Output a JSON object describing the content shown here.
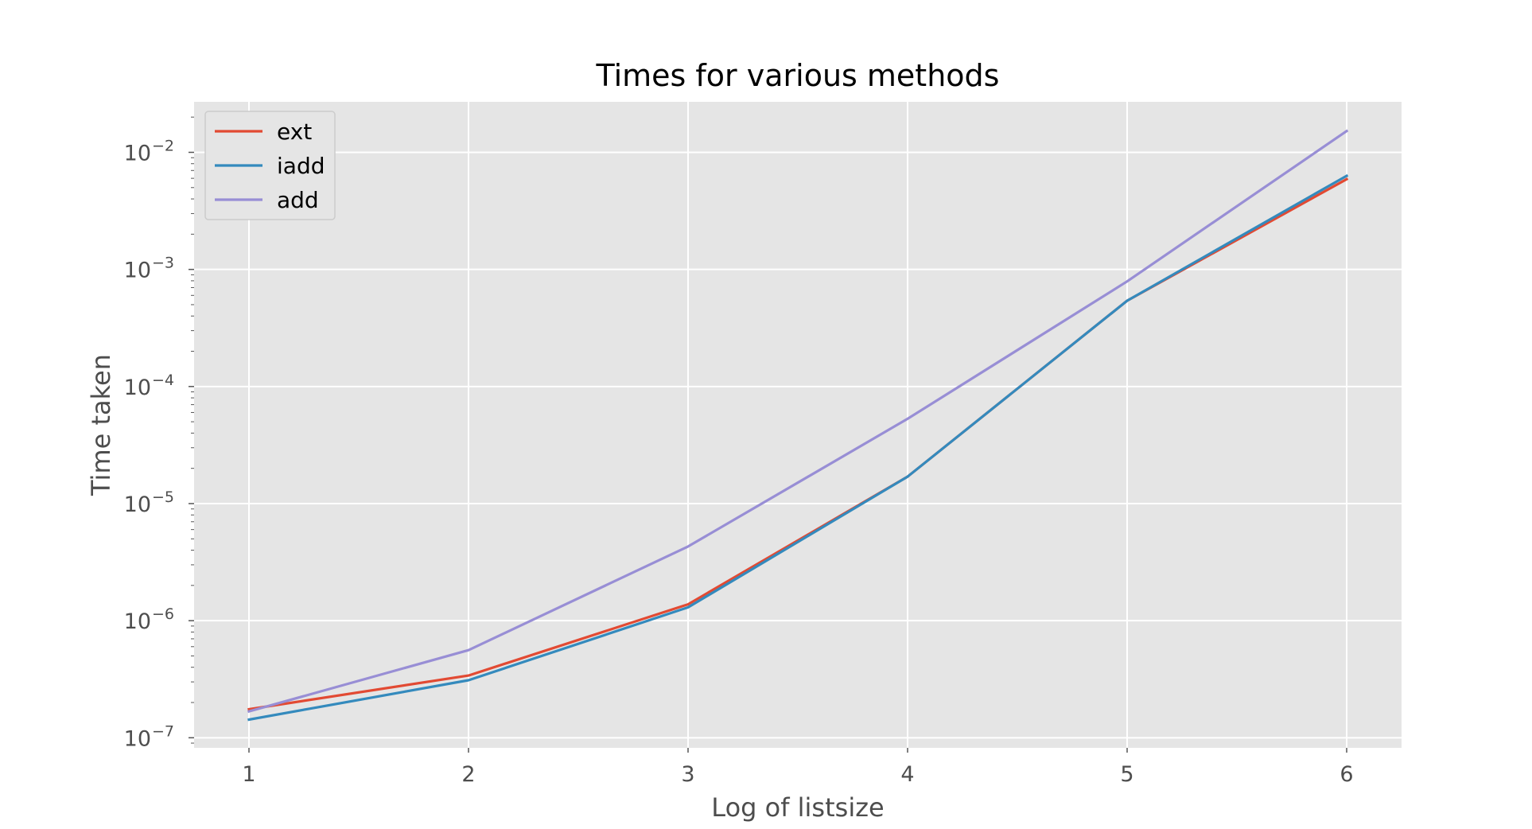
{
  "chart_data": {
    "type": "line",
    "title": "Times for various methods",
    "xlabel": "Log of listsize",
    "ylabel": "Time taken",
    "x": [
      1,
      2,
      3,
      4,
      5,
      6
    ],
    "xlim": [
      0.75,
      6.25
    ],
    "xticks": [
      "1",
      "2",
      "3",
      "4",
      "5",
      "6"
    ],
    "yscale": "log",
    "ylim": [
      8.2e-08,
      0.027
    ],
    "yticks": [
      {
        "base": "10",
        "exp": "−7"
      },
      {
        "base": "10",
        "exp": "−6"
      },
      {
        "base": "10",
        "exp": "−5"
      },
      {
        "base": "10",
        "exp": "−4"
      },
      {
        "base": "10",
        "exp": "−3"
      },
      {
        "base": "10",
        "exp": "−2"
      }
    ],
    "grid": true,
    "legend_position": "top-left",
    "series": [
      {
        "name": "ext",
        "color": "#E24A33",
        "values": [
          1.75e-07,
          3.4e-07,
          1.38e-06,
          1.7e-05,
          0.00054,
          0.0059
        ]
      },
      {
        "name": "iadd",
        "color": "#348ABD",
        "values": [
          1.43e-07,
          3.1e-07,
          1.3e-06,
          1.7e-05,
          0.00054,
          0.0063
        ]
      },
      {
        "name": "add",
        "color": "#988ED5",
        "values": [
          1.68e-07,
          5.6e-07,
          4.3e-06,
          5.3e-05,
          0.00079,
          0.0152
        ]
      }
    ],
    "colors": {
      "plot_background": "#E5E5E5",
      "grid": "#FFFFFF",
      "tick_text": "#4D4D4D"
    }
  }
}
